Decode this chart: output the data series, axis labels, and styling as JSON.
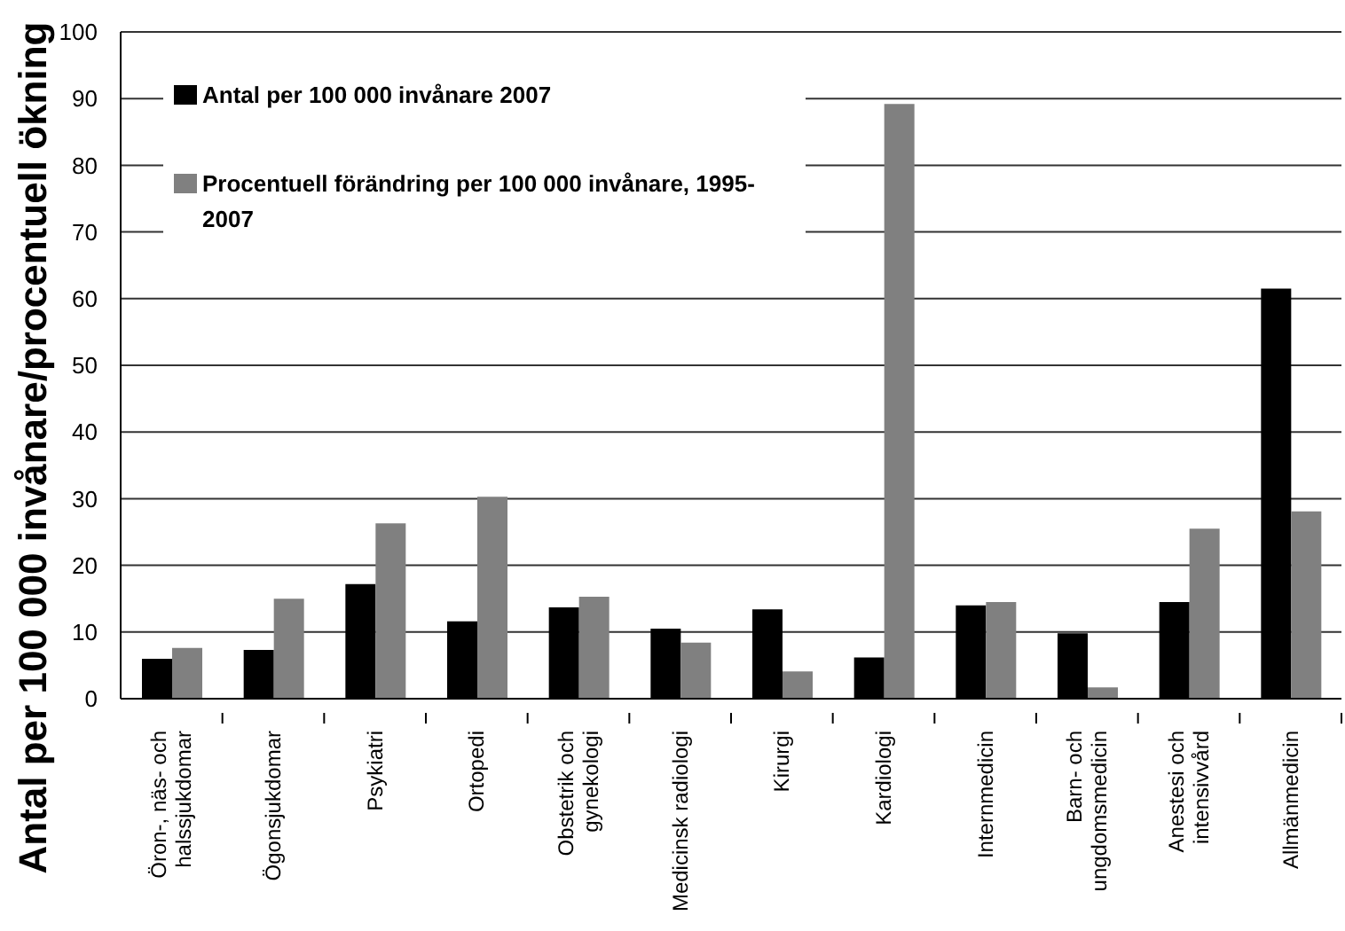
{
  "chart_data": {
    "type": "bar",
    "ylabel": "Antal per 100 000 invånare/procentuell ökning",
    "categories": [
      "Öron-, näs- och halssjukdomar",
      "Ögonsjukdomar",
      "Psykiatri",
      "Ortopedi",
      "Obstetrik och gynekologi",
      "Medicinsk radiologi",
      "Kirurgi",
      "Kardiologi",
      "Internmedicin",
      "Barn- och ungdomsmedicin",
      "Anestesi och intensivvård",
      "Allmänmedicin"
    ],
    "series": [
      {
        "name": "Antal per 100 000 invånare 2007",
        "color": "#000000",
        "values": [
          6.0,
          7.3,
          17.2,
          11.6,
          13.7,
          10.5,
          13.4,
          6.2,
          14.0,
          9.8,
          14.5,
          61.5
        ]
      },
      {
        "name": "Procentuell förändring per 100 000 invånare, 1995-2007",
        "color": "#808080",
        "values": [
          7.6,
          15.0,
          26.3,
          30.3,
          15.3,
          8.4,
          4.1,
          89.2,
          14.5,
          1.7,
          25.5,
          28.1
        ]
      }
    ],
    "ylim": [
      0,
      100
    ],
    "yticks": [
      0,
      10,
      20,
      30,
      40,
      50,
      60,
      70,
      80,
      90,
      100
    ],
    "grid": "y",
    "legend": "top left"
  }
}
